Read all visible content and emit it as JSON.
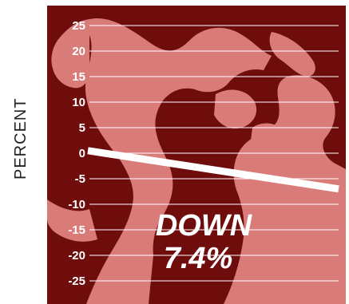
{
  "chart_data": {
    "type": "line",
    "title": "",
    "xlabel": "",
    "ylabel": "PERCENT",
    "ylim": [
      -25,
      25
    ],
    "yticks": [
      "25",
      "20",
      "15",
      "10",
      "5",
      "0",
      "-5",
      "-10",
      "-15",
      "-20",
      "-25"
    ],
    "grid": true,
    "x": [
      0,
      1
    ],
    "series": [
      {
        "values": [
          0.5,
          -7.0
        ]
      }
    ],
    "annotation": [
      "DOWN",
      "7.4%"
    ],
    "colors": {
      "background": "#6f0c0c",
      "illustration": "#d97b78",
      "line": "#ffffff",
      "grid": "#ffffff"
    }
  }
}
